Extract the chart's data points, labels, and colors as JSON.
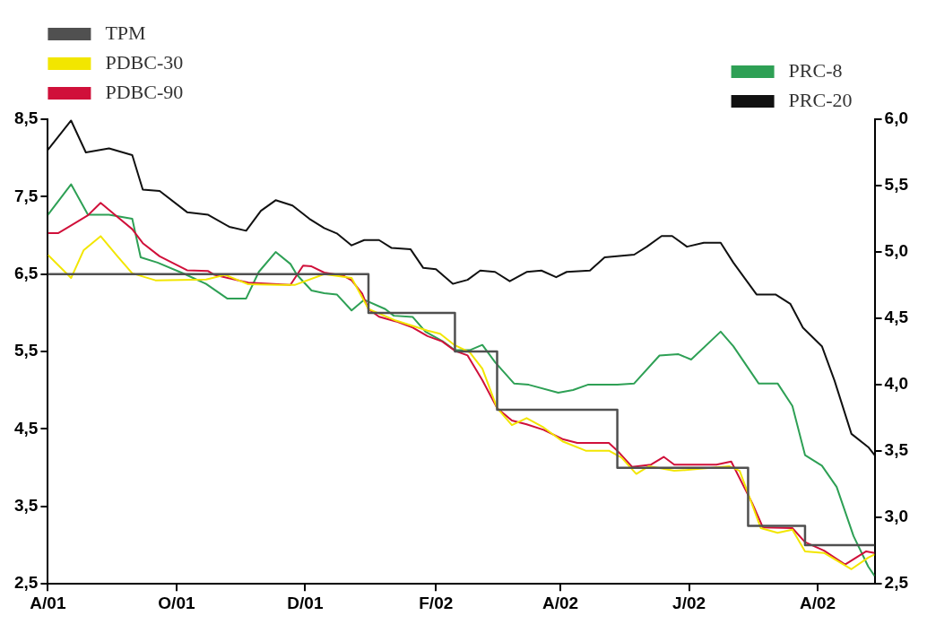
{
  "chart_data": {
    "type": "line",
    "legend": "top",
    "xlim": [
      "2001-08-01",
      "2002-08-28"
    ],
    "xticks": [
      {
        "value": "2001-08-01",
        "label": "A/01"
      },
      {
        "value": "2001-10-01",
        "label": "O/01"
      },
      {
        "value": "2001-12-01",
        "label": "D/01"
      },
      {
        "value": "2002-02-01",
        "label": "F/02"
      },
      {
        "value": "2002-04-01",
        "label": "A/02"
      },
      {
        "value": "2002-06-01",
        "label": "J/02"
      },
      {
        "value": "2002-08-01",
        "label": "A/02"
      }
    ],
    "ylim": [
      2.5,
      8.5
    ],
    "yticks": [
      {
        "value": 2.5,
        "label": "2,5"
      },
      {
        "value": 3.5,
        "label": "3,5"
      },
      {
        "value": 4.5,
        "label": "4,5"
      },
      {
        "value": 5.5,
        "label": "5,5"
      },
      {
        "value": 6.5,
        "label": "6,5"
      },
      {
        "value": 7.5,
        "label": "7,5"
      },
      {
        "value": 8.5,
        "label": "8,5"
      }
    ],
    "y2lim": [
      2.5,
      6.0
    ],
    "y2ticks": [
      {
        "value": 2.5,
        "label": "2,5"
      },
      {
        "value": 3.0,
        "label": "3,0"
      },
      {
        "value": 3.5,
        "label": "3,5"
      },
      {
        "value": 4.0,
        "label": "4,0"
      },
      {
        "value": 4.5,
        "label": "4,5"
      },
      {
        "value": 5.0,
        "label": "5,0"
      },
      {
        "value": 5.5,
        "label": "5,5"
      },
      {
        "value": 6.0,
        "label": "6,0"
      }
    ],
    "series": [
      {
        "name": "TPM",
        "type": "step",
        "color": "#505050",
        "x": [
          "2001-08-01",
          "2001-12-31",
          "2002-02-10",
          "2002-03-02",
          "2002-04-28",
          "2002-06-29",
          "2002-07-26",
          "2002-08-28"
        ],
        "values": [
          6.5,
          6.0,
          5.5,
          4.75,
          4.0,
          3.25,
          3.0,
          3.0
        ]
      },
      {
        "name": "PDBC-30",
        "color": "#f2e600",
        "x": [
          "2001-08-01",
          "2001-08-12",
          "2001-08-18",
          "2001-08-26",
          "2001-09-03",
          "2001-09-10",
          "2001-09-21",
          "2001-10-15",
          "2001-10-24",
          "2001-11-04",
          "2001-11-18",
          "2001-11-26",
          "2001-12-10",
          "2001-12-23",
          "2001-12-31",
          "2002-01-13",
          "2002-01-28",
          "2002-02-03",
          "2002-02-10",
          "2002-02-17",
          "2002-02-23",
          "2002-03-02",
          "2002-03-09",
          "2002-03-16",
          "2002-03-24",
          "2002-04-02",
          "2002-04-13",
          "2002-04-24",
          "2002-04-30",
          "2002-05-07",
          "2002-05-13",
          "2002-05-25",
          "2002-06-04",
          "2002-06-20",
          "2002-06-25",
          "2002-07-01",
          "2002-07-05",
          "2002-07-13",
          "2002-07-20",
          "2002-07-26",
          "2002-08-04",
          "2002-08-17",
          "2002-08-25",
          "2002-08-28"
        ],
        "values": [
          6.75,
          6.45,
          6.81,
          6.99,
          6.73,
          6.51,
          6.42,
          6.43,
          6.49,
          6.37,
          6.36,
          6.36,
          6.5,
          6.45,
          6.05,
          5.9,
          5.77,
          5.73,
          5.58,
          5.49,
          5.28,
          4.77,
          4.55,
          4.64,
          4.52,
          4.34,
          4.22,
          4.22,
          4.13,
          3.92,
          4.02,
          3.96,
          3.98,
          4.02,
          3.96,
          3.52,
          3.22,
          3.16,
          3.2,
          2.92,
          2.9,
          2.69,
          2.84,
          2.88
        ]
      },
      {
        "name": "PDBC-90",
        "color": "#d0103a",
        "x": [
          "2001-08-01",
          "2001-08-06",
          "2001-08-20",
          "2001-08-26",
          "2001-09-02",
          "2001-09-10",
          "2001-09-15",
          "2001-09-23",
          "2001-10-06",
          "2001-10-16",
          "2001-10-19",
          "2001-11-04",
          "2001-11-24",
          "2001-11-30",
          "2001-12-04",
          "2001-12-10",
          "2001-12-19",
          "2001-12-23",
          "2001-12-28",
          "2001-12-31",
          "2002-01-05",
          "2002-01-13",
          "2002-01-21",
          "2002-01-28",
          "2002-02-04",
          "2002-02-10",
          "2002-02-16",
          "2002-02-23",
          "2002-03-02",
          "2002-03-09",
          "2002-03-16",
          "2002-03-24",
          "2002-04-02",
          "2002-04-09",
          "2002-04-24",
          "2002-04-28",
          "2002-05-05",
          "2002-05-14",
          "2002-05-20",
          "2002-05-25",
          "2002-06-14",
          "2002-06-21",
          "2002-07-01",
          "2002-07-06",
          "2002-07-20",
          "2002-07-26",
          "2002-08-04",
          "2002-08-14",
          "2002-08-24",
          "2002-08-28"
        ],
        "values": [
          7.03,
          7.03,
          7.26,
          7.42,
          7.26,
          7.08,
          6.9,
          6.73,
          6.55,
          6.54,
          6.49,
          6.39,
          6.36,
          6.61,
          6.6,
          6.52,
          6.48,
          6.42,
          6.25,
          6.05,
          5.95,
          5.89,
          5.81,
          5.7,
          5.63,
          5.51,
          5.45,
          5.13,
          4.77,
          4.61,
          4.56,
          4.49,
          4.37,
          4.32,
          4.32,
          4.22,
          4.01,
          4.04,
          4.14,
          4.04,
          4.04,
          4.08,
          3.54,
          3.23,
          3.22,
          3.04,
          2.93,
          2.75,
          2.92,
          2.9
        ]
      },
      {
        "name": "PRC-8",
        "color": "#2ea055",
        "axis": "y2",
        "x": [
          "2001-08-01",
          "2001-08-12",
          "2001-08-20",
          "2001-08-30",
          "2001-09-10",
          "2001-09-14",
          "2001-09-22",
          "2001-10-04",
          "2001-10-15",
          "2001-10-25",
          "2001-11-03",
          "2001-11-09",
          "2001-11-17",
          "2001-11-24",
          "2001-11-27",
          "2001-12-04",
          "2001-12-10",
          "2001-12-16",
          "2001-12-23",
          "2001-12-29",
          "2002-01-08",
          "2002-01-12",
          "2002-01-21",
          "2002-01-27",
          "2002-02-04",
          "2002-02-10",
          "2002-02-17",
          "2002-02-23",
          "2002-03-01",
          "2002-03-10",
          "2002-03-17",
          "2002-03-31",
          "2002-04-07",
          "2002-04-14",
          "2002-04-28",
          "2002-05-06",
          "2002-05-18",
          "2002-05-27",
          "2002-06-02",
          "2002-06-16",
          "2002-06-22",
          "2002-07-04",
          "2002-07-13",
          "2002-07-20",
          "2002-07-26",
          "2002-08-03",
          "2002-08-10",
          "2002-08-18",
          "2002-08-25",
          "2002-08-28"
        ],
        "values": [
          5.28,
          5.51,
          5.28,
          5.28,
          5.25,
          4.96,
          4.92,
          4.84,
          4.76,
          4.65,
          4.65,
          4.85,
          5.0,
          4.91,
          4.83,
          4.71,
          4.69,
          4.68,
          4.56,
          4.64,
          4.57,
          4.52,
          4.51,
          4.4,
          4.33,
          4.26,
          4.26,
          4.3,
          4.17,
          4.01,
          4.0,
          3.94,
          3.96,
          4.0,
          4.0,
          4.01,
          4.22,
          4.23,
          4.19,
          4.4,
          4.29,
          4.01,
          4.01,
          3.84,
          3.47,
          3.39,
          3.23,
          2.86,
          2.63,
          2.56
        ]
      },
      {
        "name": "PRC-20",
        "color": "#111111",
        "axis": "y2",
        "x": [
          "2001-08-01",
          "2001-08-12",
          "2001-08-19",
          "2001-08-30",
          "2001-09-10",
          "2001-09-15",
          "2001-09-23",
          "2001-10-06",
          "2001-10-16",
          "2001-10-26",
          "2001-11-03",
          "2001-11-10",
          "2001-11-17",
          "2001-11-25",
          "2001-12-03",
          "2001-12-10",
          "2001-12-16",
          "2001-12-23",
          "2001-12-29",
          "2002-01-05",
          "2002-01-11",
          "2002-01-20",
          "2002-01-26",
          "2002-02-01",
          "2002-02-09",
          "2002-02-16",
          "2002-02-22",
          "2002-03-01",
          "2002-03-08",
          "2002-03-16",
          "2002-03-23",
          "2002-03-30",
          "2002-04-04",
          "2002-04-15",
          "2002-04-22",
          "2002-05-06",
          "2002-05-12",
          "2002-05-19",
          "2002-05-24",
          "2002-05-31",
          "2002-06-08",
          "2002-06-16",
          "2002-06-22",
          "2002-07-03",
          "2002-07-12",
          "2002-07-19",
          "2002-07-25",
          "2002-08-03",
          "2002-08-09",
          "2002-08-17",
          "2002-08-25",
          "2002-08-28"
        ],
        "values": [
          5.77,
          5.99,
          5.75,
          5.78,
          5.73,
          5.47,
          5.46,
          5.3,
          5.28,
          5.19,
          5.16,
          5.31,
          5.39,
          5.35,
          5.25,
          5.18,
          5.14,
          5.05,
          5.09,
          5.09,
          5.03,
          5.02,
          4.88,
          4.87,
          4.76,
          4.79,
          4.86,
          4.85,
          4.78,
          4.85,
          4.86,
          4.81,
          4.85,
          4.86,
          4.96,
          4.98,
          5.04,
          5.12,
          5.12,
          5.04,
          5.07,
          5.07,
          4.92,
          4.68,
          4.68,
          4.61,
          4.43,
          4.29,
          4.03,
          3.63,
          3.53,
          3.47
        ]
      }
    ]
  }
}
